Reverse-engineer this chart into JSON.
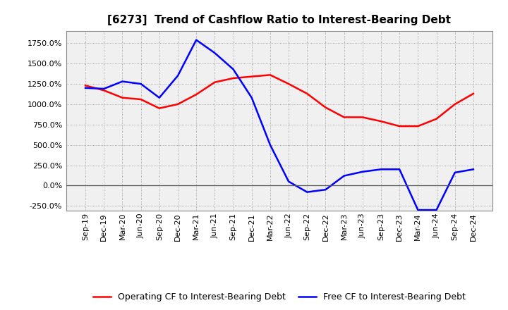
{
  "title": "[6273]  Trend of Cashflow Ratio to Interest-Bearing Debt",
  "x_labels": [
    "Sep-19",
    "Dec-19",
    "Mar-20",
    "Jun-20",
    "Sep-20",
    "Dec-20",
    "Mar-21",
    "Jun-21",
    "Sep-21",
    "Dec-21",
    "Mar-22",
    "Jun-22",
    "Sep-22",
    "Dec-22",
    "Mar-23",
    "Jun-23",
    "Sep-23",
    "Dec-23",
    "Mar-24",
    "Jun-24",
    "Sep-24",
    "Dec-24"
  ],
  "operating_cf": [
    1230,
    1170,
    1080,
    1060,
    950,
    1000,
    1120,
    1270,
    1320,
    1340,
    1360,
    1250,
    1130,
    960,
    840,
    840,
    790,
    730,
    730,
    820,
    1000,
    1130
  ],
  "free_cf": [
    1200,
    1190,
    1280,
    1250,
    1080,
    1350,
    1790,
    1630,
    1430,
    1080,
    500,
    50,
    -80,
    -50,
    120,
    170,
    200,
    200,
    -300,
    -300,
    160,
    200
  ],
  "operating_color": "#FF0000",
  "free_color": "#0000FF",
  "ylim": [
    -310,
    1900
  ],
  "yticks": [
    -250,
    0,
    250,
    500,
    750,
    1000,
    1250,
    1500,
    1750
  ],
  "background_color": "#FFFFFF",
  "plot_bg_color": "#F0F0F0",
  "grid_color": "#AAAAAA",
  "legend_op": "Operating CF to Interest-Bearing Debt",
  "legend_free": "Free CF to Interest-Bearing Debt",
  "title_fontsize": 11,
  "tick_fontsize": 8,
  "legend_fontsize": 9
}
